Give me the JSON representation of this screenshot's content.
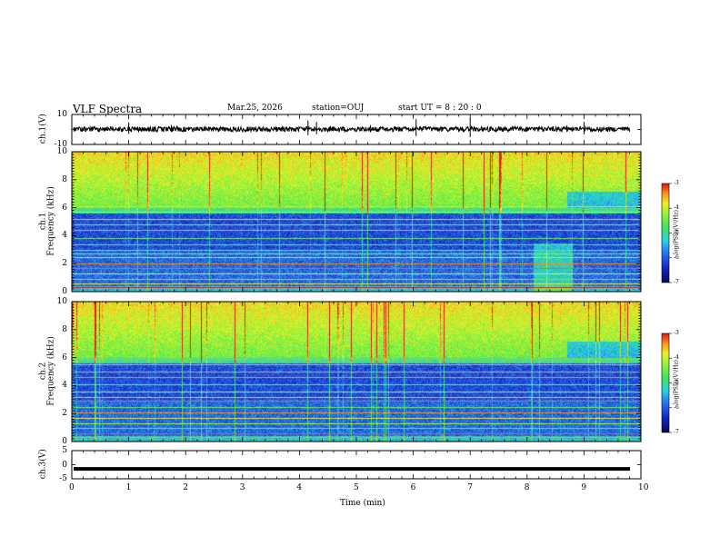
{
  "header": {
    "title": "VLF Spectra",
    "date": "Mar.25, 2026",
    "station": "station=OUJ",
    "start": "start  UT =   8 : 20 : 0"
  },
  "chart_data": [
    {
      "type": "line",
      "name": "ch.1 waveform",
      "ylabel": "ch.1(V)",
      "ylim": [
        -10,
        10
      ],
      "yticks": [
        "10",
        "-10"
      ],
      "xlim": [
        0,
        10
      ],
      "level": 0.2,
      "spikes_x": [
        1.0,
        1.75,
        4.15,
        4.3,
        5.25,
        6.05,
        7.0,
        8.7,
        9.0
      ]
    },
    {
      "type": "heatmap",
      "name": "ch.1 spectrogram",
      "ylabel_lines": [
        "ch.1",
        "Frequency  (kHz)"
      ],
      "ylim": [
        0,
        10
      ],
      "yticks": [
        "0",
        "2",
        "4",
        "6",
        "8",
        "10"
      ],
      "xlim": [
        0,
        10
      ],
      "colorbar_label": "log(PSD)(V²/Hz)",
      "colorbar_ticks": [
        "-3",
        "-4",
        "-5",
        "-6",
        "-7"
      ],
      "colorbar_range": [
        -7,
        -3
      ]
    },
    {
      "type": "heatmap",
      "name": "ch.2 spectrogram",
      "ylabel_lines": [
        "ch.2",
        "Frequency  (kHz)"
      ],
      "ylim": [
        0,
        10
      ],
      "yticks": [
        "0",
        "2",
        "4",
        "6",
        "8",
        "10"
      ],
      "xlim": [
        0,
        10
      ],
      "colorbar_label": "log(PSD)(V²/Hz)",
      "colorbar_ticks": [
        "-3",
        "-4",
        "-5",
        "-6",
        "-7"
      ],
      "colorbar_range": [
        -7,
        -3
      ]
    },
    {
      "type": "line",
      "name": "ch.3 waveform",
      "ylabel": "ch.3(V)",
      "ylim": [
        -5,
        5
      ],
      "yticks": [
        "5",
        "0",
        "-5"
      ],
      "xlim": [
        0,
        10
      ],
      "level": -1.5,
      "xlabel": "Time  (min)",
      "xticks": [
        "0",
        "1",
        "2",
        "3",
        "4",
        "5",
        "6",
        "7",
        "8",
        "9",
        "10"
      ]
    }
  ]
}
